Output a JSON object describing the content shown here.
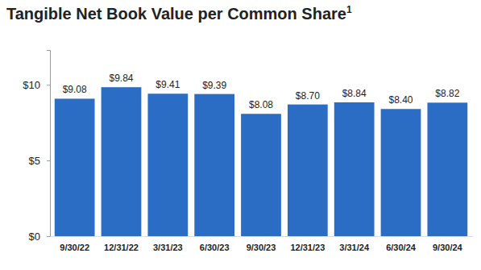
{
  "chart_data": {
    "type": "bar",
    "title": "Tangible Net Book Value per Common Share",
    "title_superscript": "1",
    "categories": [
      "9/30/22",
      "12/31/22",
      "3/31/23",
      "6/30/23",
      "9/30/23",
      "12/31/23",
      "3/31/24",
      "6/30/24",
      "9/30/24"
    ],
    "values": [
      9.08,
      9.84,
      9.41,
      9.39,
      8.08,
      8.7,
      8.84,
      8.4,
      8.82
    ],
    "value_labels": [
      "$9.08",
      "$9.84",
      "$9.41",
      "$9.39",
      "$8.08",
      "$8.70",
      "$8.84",
      "$8.40",
      "$8.82"
    ],
    "color": "#2b6cc4",
    "ylim": [
      0,
      12.3
    ],
    "yticks": [
      {
        "value": 0,
        "label": "$0"
      },
      {
        "value": 5,
        "label": "$5"
      },
      {
        "value": 10,
        "label": "$10"
      }
    ],
    "data_labels": true,
    "grid": false
  }
}
